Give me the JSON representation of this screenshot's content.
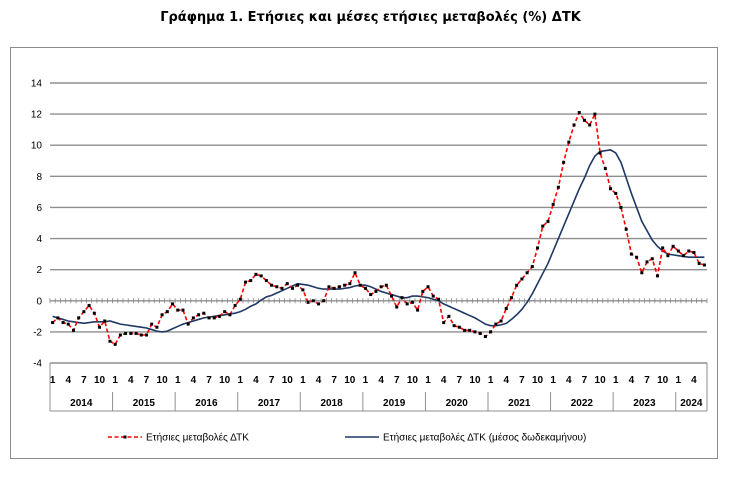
{
  "chart_data": {
    "type": "line",
    "title": "Γράφημα 1. Ετήσιες και μέσες ετήσιες μεταβολές (%) ΔΤΚ",
    "xlabel": "",
    "ylabel": "",
    "ylim": [
      -4,
      14
    ],
    "yticks": [
      "-4",
      "-2",
      "0",
      "2",
      "4",
      "6",
      "8",
      "10",
      "12",
      "14"
    ],
    "month_tick_labels": [
      "1",
      "4",
      "7",
      "10"
    ],
    "years": [
      "2014",
      "2015",
      "2016",
      "2017",
      "2018",
      "2019",
      "2020",
      "2021",
      "2022",
      "2023",
      "2024"
    ],
    "x_start": "2014-01",
    "x_end": "2024-04",
    "grid": true,
    "legend_position": "bottom",
    "series": [
      {
        "name": "Ετήσιες μεταβολές ΔΤΚ",
        "color": "#ff0000",
        "marker_color": "#000000",
        "style": "dashed",
        "values": [
          -1.4,
          -1.1,
          -1.4,
          -1.5,
          -1.9,
          -1.1,
          -0.7,
          -0.3,
          -0.8,
          -1.7,
          -1.3,
          -2.6,
          -2.8,
          -2.2,
          -2.1,
          -2.1,
          -2.1,
          -2.2,
          -2.2,
          -1.5,
          -1.7,
          -0.9,
          -0.7,
          -0.2,
          -0.6,
          -0.6,
          -1.5,
          -1.1,
          -0.9,
          -0.8,
          -1.1,
          -1.1,
          -1.0,
          -0.7,
          -0.9,
          -0.3,
          0.1,
          1.2,
          1.3,
          1.7,
          1.6,
          1.3,
          1.0,
          0.9,
          0.8,
          1.1,
          0.8,
          1.0,
          0.7,
          -0.1,
          0.0,
          -0.2,
          0.0,
          0.9,
          0.8,
          0.9,
          1.0,
          1.1,
          1.8,
          1.0,
          0.8,
          0.4,
          0.6,
          0.9,
          1.0,
          0.3,
          -0.4,
          0.2,
          -0.2,
          -0.1,
          -0.6,
          0.6,
          0.9,
          0.3,
          0.1,
          -1.4,
          -1.0,
          -1.6,
          -1.7,
          -1.9,
          -1.9,
          -2.0,
          -2.1,
          -2.3,
          -2.0,
          -1.5,
          -1.3,
          -0.5,
          0.2,
          1.0,
          1.4,
          1.8,
          2.2,
          3.4,
          4.8,
          5.1,
          6.2,
          7.3,
          8.9,
          10.2,
          11.3,
          12.1,
          11.6,
          11.3,
          12.0,
          9.5,
          8.5,
          7.2,
          6.9,
          6.0,
          4.6,
          3.0,
          2.8,
          1.8,
          2.5,
          2.7,
          1.6,
          3.4,
          2.9,
          3.5,
          3.2,
          2.9,
          3.2,
          3.1,
          2.4,
          2.3
        ]
      },
      {
        "name": "Ετήσιες μεταβολές ΔΤΚ (μέσος δωδεκαμήνου)",
        "color": "#1f3864",
        "style": "solid",
        "values": [
          -1.0,
          -1.1,
          -1.2,
          -1.3,
          -1.35,
          -1.4,
          -1.45,
          -1.4,
          -1.35,
          -1.35,
          -1.35,
          -1.3,
          -1.4,
          -1.5,
          -1.55,
          -1.6,
          -1.65,
          -1.7,
          -1.75,
          -1.85,
          -1.95,
          -2.0,
          -1.95,
          -1.8,
          -1.65,
          -1.5,
          -1.4,
          -1.3,
          -1.2,
          -1.1,
          -1.05,
          -1.0,
          -0.95,
          -0.9,
          -0.85,
          -0.8,
          -0.7,
          -0.55,
          -0.35,
          -0.2,
          0.05,
          0.25,
          0.35,
          0.5,
          0.65,
          0.8,
          0.95,
          1.1,
          1.05,
          1.0,
          0.9,
          0.8,
          0.75,
          0.75,
          0.75,
          0.75,
          0.8,
          0.85,
          0.95,
          1.0,
          1.0,
          0.9,
          0.75,
          0.6,
          0.5,
          0.4,
          0.3,
          0.2,
          0.2,
          0.3,
          0.3,
          0.25,
          0.2,
          0.1,
          0.0,
          -0.2,
          -0.35,
          -0.5,
          -0.65,
          -0.8,
          -0.95,
          -1.1,
          -1.3,
          -1.5,
          -1.6,
          -1.6,
          -1.55,
          -1.45,
          -1.2,
          -0.9,
          -0.55,
          -0.1,
          0.45,
          1.1,
          1.75,
          2.4,
          3.2,
          4.0,
          4.8,
          5.6,
          6.4,
          7.2,
          7.9,
          8.7,
          9.3,
          9.6,
          9.65,
          9.7,
          9.5,
          8.9,
          7.9,
          6.9,
          6.0,
          5.1,
          4.5,
          3.9,
          3.5,
          3.2,
          3.0,
          2.95,
          2.9,
          2.85,
          2.8,
          2.8,
          2.8,
          2.8
        ]
      }
    ]
  }
}
